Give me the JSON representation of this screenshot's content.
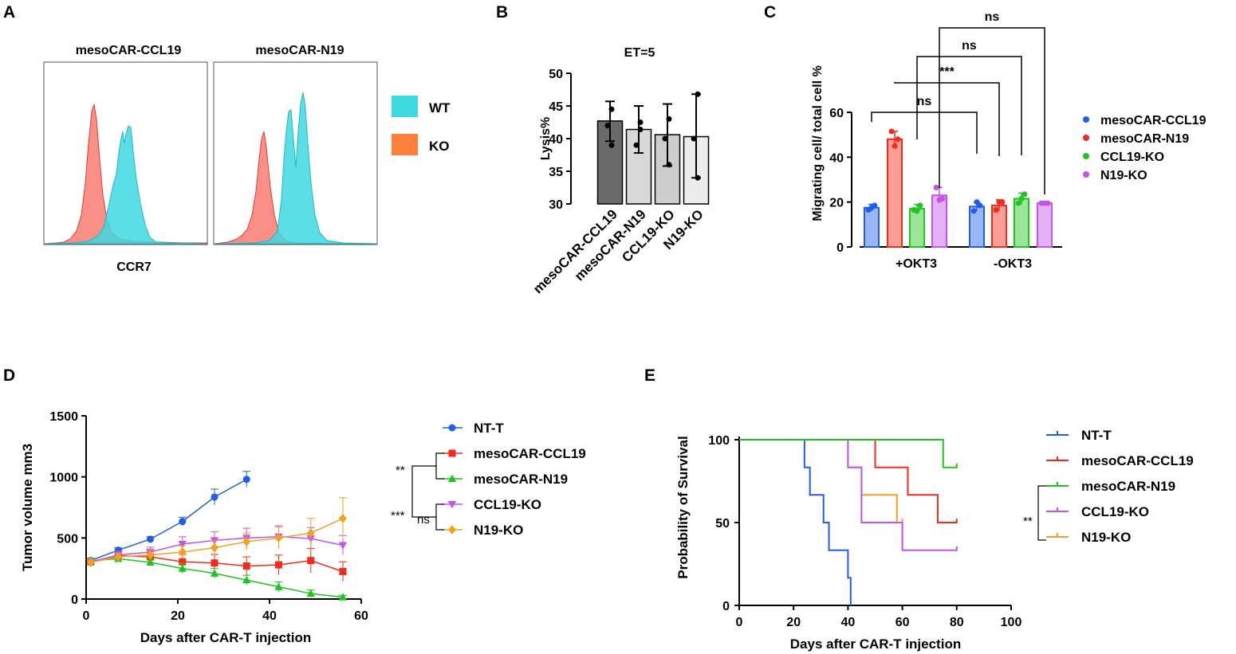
{
  "colors": {
    "wt": "#3ed8e0",
    "ko": "#f76a5e",
    "ko_legend": "#ff7f3c",
    "blue": "#1f5ee8",
    "red": "#f52a1a",
    "green": "#1fc51f",
    "purple": "#c255e8",
    "orange": "#f2a020",
    "dark": "#6a6a6a",
    "grey1": "#d8d8d8",
    "grey2": "#cdcdcd",
    "grey3": "#ececec"
  },
  "panels": {
    "A": "A",
    "B": "B",
    "C": "C",
    "D": "D",
    "E": "E"
  },
  "chart_data": [
    {
      "id": "A",
      "type": "histogram",
      "plots": [
        {
          "title": "mesoCAR-CCL19"
        },
        {
          "title": "mesoCAR-N19"
        }
      ],
      "xlabel": "CCR7",
      "legend": [
        {
          "name": "WT",
          "color": "#3ed8e0"
        },
        {
          "name": "KO",
          "color": "#ff7f3c"
        }
      ]
    },
    {
      "id": "B",
      "type": "bar",
      "title": "ET=5",
      "ylabel": "Lysis%",
      "ylim": [
        30,
        50
      ],
      "yticks": [
        30,
        35,
        40,
        45,
        50
      ],
      "categories": [
        "mesoCAR-CCL19",
        "mesoCAR-N19",
        "CCL19-KO",
        "N19-KO"
      ],
      "values": [
        42.7,
        41.4,
        40.6,
        40.3
      ],
      "err_low": [
        39.6,
        37.8,
        35.8,
        34.0
      ],
      "err_high": [
        45.7,
        45.0,
        45.3,
        46.8
      ],
      "points": [
        [
          44.5,
          42.0,
          39.0
        ],
        [
          42.5,
          39.0,
          41.4
        ],
        [
          43.0,
          40.0,
          36.0
        ],
        [
          46.8,
          40.0,
          34.0
        ]
      ]
    },
    {
      "id": "C",
      "type": "bar",
      "ylabel": "Migrating cell/ total cell %",
      "ylim": [
        0,
        60
      ],
      "yticks": [
        0,
        20,
        40,
        60
      ],
      "groups": [
        "+OKT3",
        "-OKT3"
      ],
      "series": [
        {
          "name": "mesoCAR-CCL19",
          "color": "#1f5ee8",
          "values": [
            17.5,
            18.0
          ],
          "errors": [
            1.5,
            2.0
          ],
          "points": [
            [
              16.5,
              18.5,
              17.5
            ],
            [
              16,
              18.5,
              20
            ]
          ]
        },
        {
          "name": "mesoCAR-N19",
          "color": "#f52a1a",
          "values": [
            48.0,
            18.5
          ],
          "errors": [
            3.5,
            2.5
          ],
          "points": [
            [
              51.5,
              48,
              45
            ],
            [
              16.5,
              20,
              20
            ]
          ]
        },
        {
          "name": "CCL19-KO",
          "color": "#1fc51f",
          "values": [
            17.0,
            21.5
          ],
          "errors": [
            2.0,
            2.5
          ],
          "points": [
            [
              16.5,
              18.5,
              16
            ],
            [
              19.5,
              23.5,
              21.5
            ]
          ]
        },
        {
          "name": "N19-KO",
          "color": "#c255e8",
          "values": [
            23.0,
            19.5
          ],
          "errors": [
            3.5,
            0.5
          ],
          "points": [
            [
              26.5,
              21.5,
              21
            ],
            [
              19.5,
              19.5,
              19.5
            ]
          ]
        }
      ],
      "significance": [
        "ns",
        "***",
        "ns",
        "ns"
      ]
    },
    {
      "id": "D",
      "type": "line",
      "xlabel": "Days after  CAR-T injection",
      "ylabel": "Tumor volume mm3",
      "xlim": [
        0,
        60
      ],
      "ylim": [
        0,
        1500
      ],
      "xticks": [
        0,
        20,
        40,
        60
      ],
      "yticks": [
        0,
        500,
        1000,
        1500
      ],
      "series": [
        {
          "name": "NT-T",
          "color": "#1f5ee8",
          "marker": "circle",
          "x": [
            1,
            7,
            14,
            21,
            28,
            35
          ],
          "y": [
            315,
            400,
            490,
            635,
            835,
            980
          ],
          "err": [
            20,
            20,
            20,
            35,
            65,
            65
          ]
        },
        {
          "name": "mesoCAR-CCL19",
          "color": "#f52a1a",
          "marker": "square",
          "x": [
            1,
            7,
            14,
            21,
            28,
            35,
            42,
            49,
            56
          ],
          "y": [
            305,
            355,
            345,
            305,
            295,
            270,
            280,
            315,
            225
          ],
          "err": [
            20,
            30,
            50,
            60,
            70,
            75,
            80,
            100,
            80
          ]
        },
        {
          "name": "mesoCAR-N19",
          "color": "#1fc51f",
          "marker": "triangle",
          "x": [
            1,
            7,
            14,
            21,
            28,
            35,
            42,
            49,
            56
          ],
          "y": [
            315,
            330,
            300,
            250,
            210,
            155,
            100,
            45,
            15
          ],
          "err": [
            20,
            20,
            30,
            40,
            40,
            40,
            40,
            30,
            15
          ]
        },
        {
          "name": "CCL19-KO",
          "color": "#c255e8",
          "marker": "triangle-down",
          "x": [
            1,
            7,
            14,
            21,
            28,
            35,
            42,
            49,
            56
          ],
          "y": [
            305,
            360,
            385,
            450,
            480,
            500,
            510,
            495,
            440
          ],
          "err": [
            20,
            30,
            40,
            60,
            70,
            80,
            90,
            90,
            80
          ]
        },
        {
          "name": "N19-KO",
          "color": "#f2a020",
          "marker": "diamond",
          "x": [
            1,
            7,
            14,
            21,
            28,
            35,
            42,
            49,
            56
          ],
          "y": [
            300,
            345,
            360,
            385,
            420,
            470,
            500,
            540,
            660
          ],
          "err": [
            20,
            30,
            40,
            50,
            60,
            70,
            90,
            120,
            170
          ]
        }
      ],
      "significance": [
        "**",
        "***",
        "ns"
      ]
    },
    {
      "id": "E",
      "type": "survival",
      "xlabel": "Days after  CAR-T injection",
      "ylabel": "Probability of Survival",
      "xlim": [
        0,
        100
      ],
      "ylim": [
        0,
        100
      ],
      "xticks": [
        0,
        20,
        40,
        60,
        80,
        100
      ],
      "yticks": [
        0,
        50,
        100
      ],
      "series": [
        {
          "name": "NT-T",
          "color": "#1f5ee8",
          "steps": [
            [
              0,
              100
            ],
            [
              24,
              100
            ],
            [
              24,
              83.3
            ],
            [
              26,
              83.3
            ],
            [
              26,
              66.7
            ],
            [
              31,
              66.7
            ],
            [
              31,
              50
            ],
            [
              33,
              50
            ],
            [
              33,
              33.3
            ],
            [
              40,
              33.3
            ],
            [
              40,
              16.7
            ],
            [
              41,
              16.7
            ],
            [
              41,
              0
            ]
          ]
        },
        {
          "name": "mesoCAR-CCL19",
          "color": "#f52a1a",
          "steps": [
            [
              0,
              100
            ],
            [
              50,
              100
            ],
            [
              50,
              83.3
            ],
            [
              62,
              83.3
            ],
            [
              62,
              66.7
            ],
            [
              73,
              66.7
            ],
            [
              73,
              50
            ],
            [
              80,
              50
            ]
          ]
        },
        {
          "name": "mesoCAR-N19",
          "color": "#1fc51f",
          "steps": [
            [
              0,
              100
            ],
            [
              75,
              100
            ],
            [
              75,
              83.3
            ],
            [
              80,
              83.3
            ]
          ]
        },
        {
          "name": "CCL19-KO",
          "color": "#c255e8",
          "steps": [
            [
              0,
              100
            ],
            [
              40,
              100
            ],
            [
              40,
              83.3
            ],
            [
              45,
              83.3
            ],
            [
              45,
              50
            ],
            [
              60,
              50
            ],
            [
              60,
              33.3
            ],
            [
              80,
              33.3
            ]
          ]
        },
        {
          "name": "N19-KO",
          "color": "#f2a020",
          "steps": [
            [
              0,
              100
            ],
            [
              40,
              100
            ],
            [
              40,
              83.3
            ],
            [
              45,
              83.3
            ],
            [
              45,
              66.7
            ],
            [
              58,
              66.7
            ],
            [
              58,
              50
            ],
            [
              60,
              50
            ]
          ]
        }
      ],
      "significance": [
        "**"
      ]
    }
  ]
}
